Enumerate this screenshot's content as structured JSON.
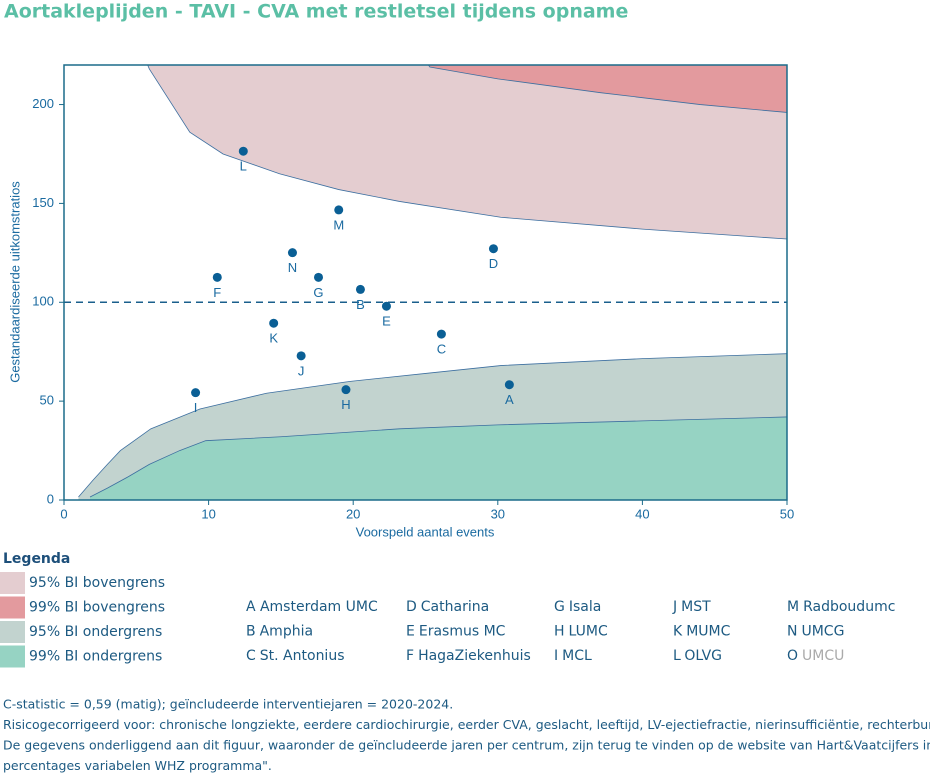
{
  "chart_data": {
    "type": "funnel",
    "title": "Aortakleplijden - TAVI - CVA met restletsel tijdens opname",
    "x_label": "Voorspeld aantal events",
    "y_label": "Gestandaardiseerde uitkomstratios",
    "xlim": [
      0,
      50
    ],
    "xticks": [
      0,
      10,
      20,
      30,
      40,
      50
    ],
    "ylim": [
      0,
      220
    ],
    "yticks": [
      0,
      50,
      100,
      150,
      200
    ],
    "reference": 100,
    "bands": [
      {
        "name": "95% BI bovengrens",
        "color": "#e4cdd0",
        "side": "upper",
        "x": [
          5.5,
          5.9,
          8.7,
          11,
          14.9,
          19,
          23.2,
          30.2,
          40,
          50
        ],
        "values": [
          225,
          218,
          186,
          175,
          165,
          157,
          151,
          143,
          137,
          132
        ]
      },
      {
        "name": "99% BI bovengrens",
        "color": "#e39a9e",
        "side": "upper",
        "x": [
          25,
          25.3,
          30,
          37.1,
          44,
          50
        ],
        "values": [
          222,
          219,
          213,
          206,
          200,
          196
        ]
      },
      {
        "name": "95% BI ondergrens",
        "color": "#c2d3cf",
        "side": "lower",
        "x": [
          1,
          2,
          3,
          3.9,
          6,
          9.4,
          14,
          19.8,
          25,
          30.2,
          40,
          50
        ],
        "values": [
          1.5,
          10,
          18,
          25,
          36,
          46,
          54,
          60,
          64,
          68,
          71.5,
          74
        ]
      },
      {
        "name": "99% BI ondergrens",
        "color": "#96d3c3",
        "side": "lower",
        "x": [
          1.8,
          3,
          4.5,
          5.9,
          8,
          9.8,
          15,
          23.2,
          30,
          40,
          50
        ],
        "values": [
          1.5,
          6,
          12,
          18,
          25,
          30,
          32,
          36,
          38,
          40,
          42
        ]
      }
    ],
    "points": {
      "color": "#0a5f95",
      "labels": [
        "L",
        "M",
        "N",
        "D",
        "F",
        "G",
        "B",
        "E",
        "K",
        "C",
        "J",
        "I",
        "H",
        "A"
      ],
      "x": [
        12.4,
        19.0,
        15.8,
        29.7,
        10.6,
        17.6,
        20.5,
        22.3,
        14.5,
        26.1,
        16.4,
        9.1,
        19.5,
        30.8
      ],
      "values": [
        176.4,
        146.7,
        125.1,
        127.1,
        112.6,
        112.6,
        106.5,
        98,
        89.4,
        83.9,
        72.9,
        54.3,
        55.8,
        58.3
      ]
    },
    "legend_title": "Legenda",
    "hospitals": [
      {
        "code": "A",
        "name": "Amsterdam UMC"
      },
      {
        "code": "B",
        "name": "Amphia"
      },
      {
        "code": "C",
        "name": "St. Antonius"
      },
      {
        "code": "D",
        "name": "Catharina"
      },
      {
        "code": "E",
        "name": "Erasmus MC"
      },
      {
        "code": "F",
        "name": "HagaZiekenhuis"
      },
      {
        "code": "G",
        "name": "Isala"
      },
      {
        "code": "H",
        "name": "LUMC"
      },
      {
        "code": "I",
        "name": "MCL"
      },
      {
        "code": "J",
        "name": "MST"
      },
      {
        "code": "K",
        "name": "MUMC"
      },
      {
        "code": "L",
        "name": "OLVG"
      },
      {
        "code": "M",
        "name": "Radboudumc"
      },
      {
        "code": "N",
        "name": "UMCG"
      },
      {
        "code": "O",
        "name": "UMCU",
        "muted": true
      }
    ],
    "notes": [
      "C-statistic =  0,59 (matig); geïncludeerde interventiejaren = 2020-2024.",
      "Risicogecorrigeerd voor: chronische longziekte, eerdere cardiochirurgie, eerder CVA, geslacht, leeftijd, LV-ejectiefractie, nierinsufficiëntie, rechterbun",
      "De gegevens onderliggend aan dit figuur, waaronder de geïncludeerde jaren per centrum, zijn terug te vinden op de website van Hart&Vaatcijfers in d",
      "percentages variabelen WHZ programma\"."
    ]
  }
}
